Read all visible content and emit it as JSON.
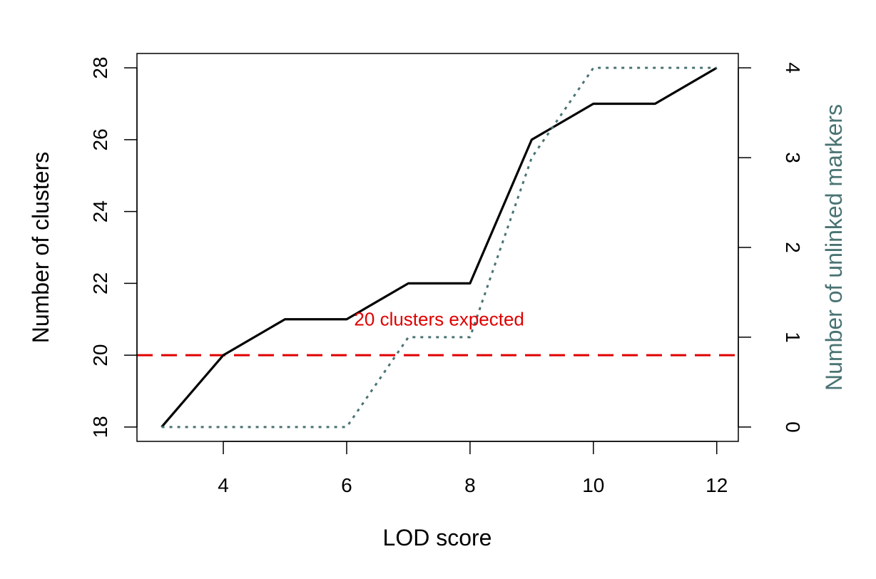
{
  "chart_data": {
    "type": "line",
    "xlabel": "LOD score",
    "ylabel": "Number of clusters",
    "y2label": "Number of unlinked markers",
    "xlim": [
      2.6,
      12.35
    ],
    "ylim": [
      17.6,
      28.4
    ],
    "y2lim": [
      -0.16,
      4.16
    ],
    "xticks": [
      4,
      6,
      8,
      10,
      12
    ],
    "yticks": [
      18,
      20,
      22,
      24,
      26,
      28
    ],
    "y2ticks": [
      0,
      1,
      2,
      3,
      4
    ],
    "x": [
      3,
      4,
      5,
      6,
      7,
      8,
      9,
      10,
      11,
      12
    ],
    "series": [
      {
        "axis": "left",
        "color": "#000000",
        "style": "solid",
        "values": [
          18,
          20,
          21,
          21,
          22,
          22,
          26,
          27,
          27,
          28
        ]
      },
      {
        "axis": "right",
        "color": "#4a7373",
        "style": "dotted",
        "values": [
          0,
          0,
          0,
          0,
          1,
          1,
          3,
          4,
          4,
          4
        ]
      }
    ],
    "hline": {
      "y": 20,
      "color": "#e00000",
      "style": "dashed"
    },
    "annotation": {
      "text": "20 clusters expected",
      "x": 7.5,
      "y": 21,
      "color": "#e00000"
    },
    "grid": false,
    "colors": {
      "primary": "#000000",
      "secondary": "#4a7373",
      "reference": "#e00000"
    }
  }
}
